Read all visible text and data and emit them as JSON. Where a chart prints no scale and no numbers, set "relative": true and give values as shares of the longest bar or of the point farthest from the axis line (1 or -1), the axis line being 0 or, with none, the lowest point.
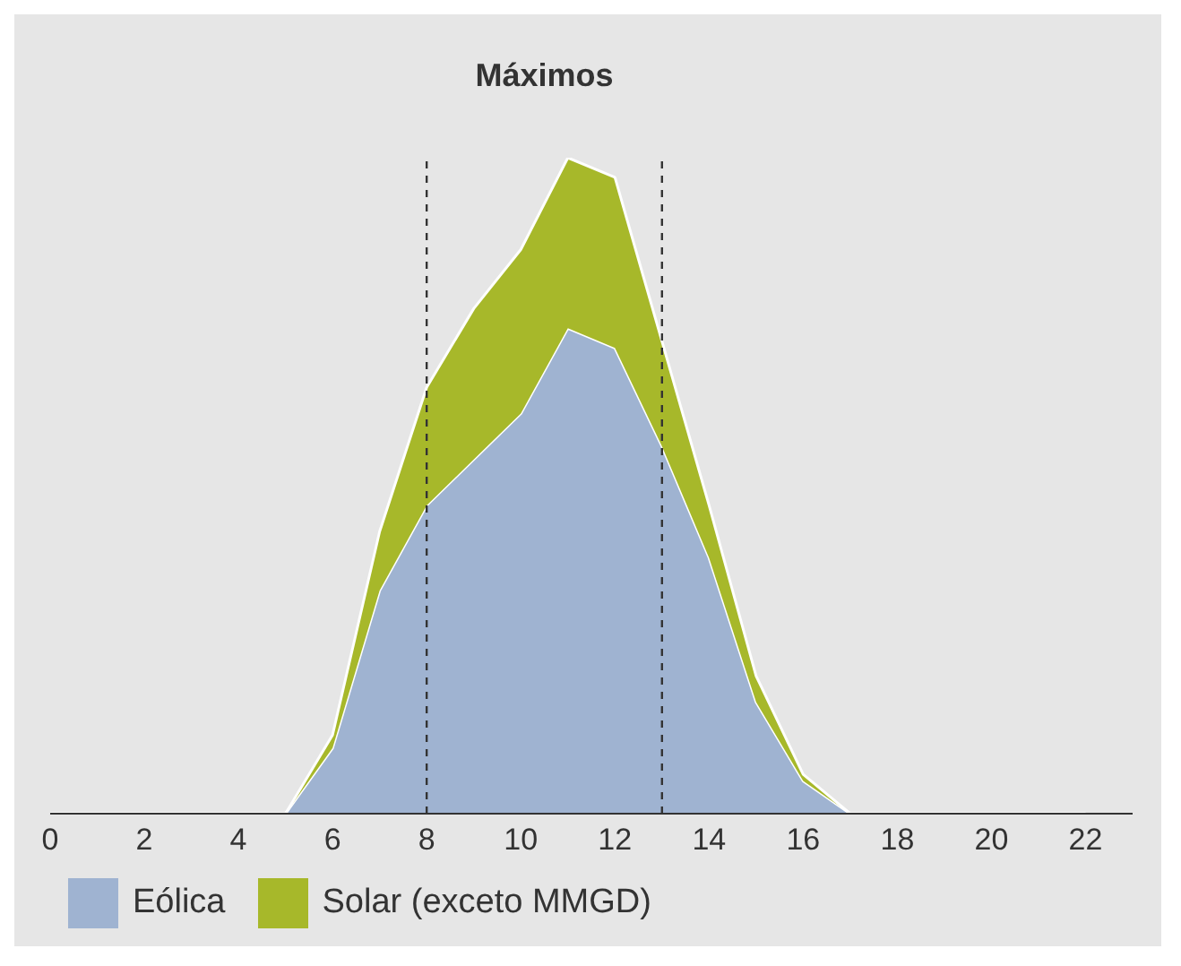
{
  "chart_data": {
    "type": "area",
    "relative": true,
    "stacked": true,
    "x": [
      0,
      1,
      2,
      3,
      4,
      5,
      6,
      7,
      8,
      9,
      10,
      11,
      12,
      13,
      14,
      15,
      16,
      17,
      18,
      19,
      20,
      21,
      22
    ],
    "series": [
      {
        "name": "Eólica",
        "color": "#9fb3d1",
        "values": [
          0,
          0,
          0,
          0,
          0,
          0,
          0.1,
          0.34,
          0.47,
          0.54,
          0.61,
          0.74,
          0.71,
          0.56,
          0.39,
          0.17,
          0.05,
          0,
          0,
          0,
          0,
          0,
          0
        ]
      },
      {
        "name": "Solar (exceto MMGD)",
        "color": "#a7b82a",
        "values": [
          0,
          0,
          0,
          0,
          0,
          0,
          0.02,
          0.09,
          0.18,
          0.23,
          0.25,
          0.26,
          0.26,
          0.16,
          0.08,
          0.04,
          0.01,
          0,
          0,
          0,
          0,
          0,
          0
        ]
      }
    ],
    "xlim": [
      0,
      23
    ],
    "xticks": [
      0,
      2,
      4,
      6,
      8,
      10,
      12,
      14,
      16,
      18,
      20,
      22
    ],
    "ref_lines": [
      {
        "axis": "x",
        "value": 8,
        "line_style": "dashed",
        "color": "#333333"
      },
      {
        "axis": "x",
        "value": 13,
        "line_style": "dashed",
        "color": "#333333"
      }
    ],
    "annotations": [
      "Máximos"
    ],
    "legend": "bottom"
  }
}
